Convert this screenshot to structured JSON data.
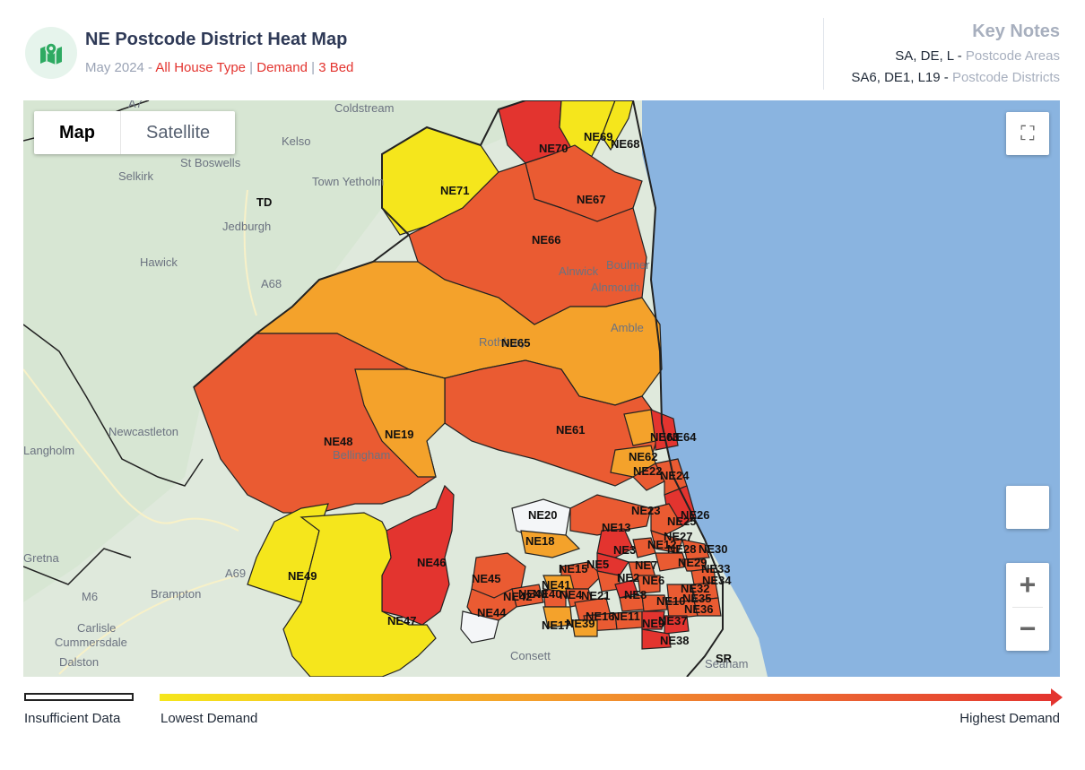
{
  "header": {
    "title": "NE Postcode District Heat Map",
    "date": "May 2024",
    "dash": " - ",
    "house_type": "All House Type",
    "metric": "Demand",
    "bedrooms": "3 Bed",
    "separator": " | "
  },
  "key_notes": {
    "title": "Key Notes",
    "areas_examples": "SA, DE, L - ",
    "areas_label": "Postcode Areas",
    "districts_examples": "SA6, DE1, L19 - ",
    "districts_label": "Postcode Districts"
  },
  "map_controls": {
    "map_label": "Map",
    "satellite_label": "Satellite",
    "active_type": "Map",
    "zoom_in": "+",
    "zoom_out": "−"
  },
  "base_map_places": [
    "Coldstream",
    "Kelso",
    "St Boswells",
    "Selkirk",
    "Town Yetholm",
    "Jedburgh",
    "Hawick",
    "Langholm",
    "Newcastleton",
    "Gretna",
    "Brampton",
    "Carlisle",
    "Cummersdale",
    "Dalston",
    "Consett",
    "Seaham",
    "Alnwick",
    "Boulmer",
    "Alnmouth",
    "Amble",
    "Bellingham",
    "Rothbury"
  ],
  "base_map_labels": [
    "TD",
    "SR",
    "A7",
    "A68",
    "A69",
    "M6"
  ],
  "legend": {
    "insufficient": "Insufficient Data",
    "lowest": "Lowest  Demand",
    "highest": "Highest  Demand",
    "colors": {
      "lowest": "#f5e61c",
      "mid": "#f4a22b",
      "high": "#ea5b32",
      "highest": "#e3342f",
      "insufficient": "#f4f6f8"
    }
  },
  "districts": [
    {
      "code": "NE70",
      "level": "highest"
    },
    {
      "code": "NE69",
      "level": "lowest"
    },
    {
      "code": "NE68",
      "level": "lowest"
    },
    {
      "code": "NE71",
      "level": "lowest"
    },
    {
      "code": "NE67",
      "level": "high"
    },
    {
      "code": "NE66",
      "level": "high"
    },
    {
      "code": "NE65",
      "level": "mid"
    },
    {
      "code": "NE61",
      "level": "high"
    },
    {
      "code": "NE48",
      "level": "high"
    },
    {
      "code": "NE19",
      "level": "mid"
    },
    {
      "code": "NE63",
      "level": "mid"
    },
    {
      "code": "NE64",
      "level": "highest"
    },
    {
      "code": "NE62",
      "level": "mid"
    },
    {
      "code": "NE22",
      "level": "high"
    },
    {
      "code": "NE24",
      "level": "high"
    },
    {
      "code": "NE20",
      "level": "insufficient"
    },
    {
      "code": "NE23",
      "level": "high"
    },
    {
      "code": "NE26",
      "level": "highest"
    },
    {
      "code": "NE25",
      "level": "high"
    },
    {
      "code": "NE27",
      "level": "high"
    },
    {
      "code": "NE13",
      "level": "highest"
    },
    {
      "code": "NE12",
      "level": "high"
    },
    {
      "code": "NE18",
      "level": "mid"
    },
    {
      "code": "NE3",
      "level": "highest"
    },
    {
      "code": "NE30",
      "level": "high"
    },
    {
      "code": "NE28",
      "level": "high"
    },
    {
      "code": "NE29",
      "level": "high"
    },
    {
      "code": "NE33",
      "level": "high"
    },
    {
      "code": "NE46",
      "level": "highest"
    },
    {
      "code": "NE15",
      "level": "high"
    },
    {
      "code": "NE5",
      "level": "high"
    },
    {
      "code": "NE7",
      "level": "high"
    },
    {
      "code": "NE2",
      "level": "highest"
    },
    {
      "code": "NE6",
      "level": "high"
    },
    {
      "code": "NE34",
      "level": "high"
    },
    {
      "code": "NE49",
      "level": "lowest"
    },
    {
      "code": "NE45",
      "level": "high"
    },
    {
      "code": "NE41",
      "level": "mid"
    },
    {
      "code": "NE42",
      "level": "high"
    },
    {
      "code": "NE40",
      "level": "high"
    },
    {
      "code": "NE4",
      "level": "high"
    },
    {
      "code": "NE21",
      "level": "high"
    },
    {
      "code": "NE8",
      "level": "high"
    },
    {
      "code": "NE10",
      "level": "high"
    },
    {
      "code": "NE32",
      "level": "high"
    },
    {
      "code": "NE35",
      "level": "high"
    },
    {
      "code": "NE36",
      "level": "high"
    },
    {
      "code": "NE43",
      "level": "high"
    },
    {
      "code": "NE44",
      "level": "insufficient"
    },
    {
      "code": "NE16",
      "level": "high"
    },
    {
      "code": "NE11",
      "level": "high"
    },
    {
      "code": "NE9",
      "level": "highest"
    },
    {
      "code": "NE37",
      "level": "highest"
    },
    {
      "code": "NE47",
      "level": "lowest"
    },
    {
      "code": "NE17",
      "level": "mid"
    },
    {
      "code": "NE39",
      "level": "mid"
    },
    {
      "code": "NE38",
      "level": "highest"
    }
  ]
}
